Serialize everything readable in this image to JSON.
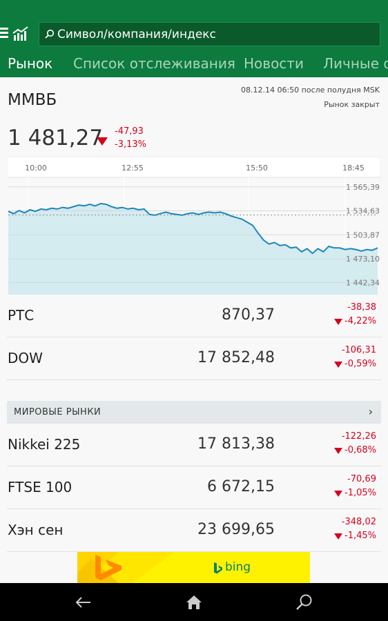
{
  "header": {
    "search_placeholder": "Символ/компания/индекс",
    "tabs": [
      "Рынок",
      "Список отслеживания",
      "Новости",
      "Личные ф"
    ]
  },
  "index": {
    "name": "ММВБ",
    "date": "08.12.14 06:50 после полудня MSK",
    "status": "Рынок закрыт",
    "value": "1 481,27",
    "change_abs": "-47,93",
    "change_pct": "-3,13%"
  },
  "chart_data": {
    "type": "area",
    "x_ticks": [
      "10:00",
      "12:55",
      "15:50",
      "18:45"
    ],
    "y_ticks": [
      "1 565,39",
      "1 534,63",
      "1 503,87",
      "1 473,10",
      "1 442,34"
    ],
    "ylim": [
      1427,
      1575
    ],
    "previous_close": 1529.2,
    "values": [
      1534,
      1531,
      1535,
      1532,
      1536,
      1534,
      1537,
      1536,
      1538,
      1537,
      1539,
      1538,
      1540,
      1542,
      1541,
      1543,
      1541,
      1544,
      1543,
      1540,
      1538,
      1539,
      1537,
      1538,
      1536,
      1537,
      1530,
      1529,
      1531,
      1533,
      1531,
      1530,
      1529,
      1531,
      1532,
      1530,
      1532,
      1533,
      1532,
      1533,
      1531,
      1528,
      1526,
      1524,
      1520,
      1516,
      1506,
      1497,
      1492,
      1494,
      1490,
      1491,
      1487,
      1488,
      1482,
      1486,
      1480,
      1486,
      1482,
      1489,
      1487,
      1487,
      1485,
      1486,
      1485,
      1483,
      1485,
      1484,
      1487
    ],
    "grid": true,
    "colors": {
      "line": "#1b86b8",
      "fill": "#d4ebf0",
      "prev_close": "#888888"
    }
  },
  "quotes_top": [
    {
      "name": "РТС",
      "value": "870,37",
      "change_abs": "-38,38",
      "change_pct": "-4,22%"
    },
    {
      "name": "DOW",
      "value": "17 852,48",
      "change_abs": "-106,31",
      "change_pct": "-0,59%"
    }
  ],
  "world_markets": {
    "title": "МИРОВЫЕ РЫНКИ",
    "chevron": "›",
    "items": [
      {
        "name": "Nikkei 225",
        "value": "17 813,38",
        "change_abs": "-122,26",
        "change_pct": "-0,68%"
      },
      {
        "name": "FTSE 100",
        "value": "6 672,15",
        "change_abs": "-70,69",
        "change_pct": "-1,05%"
      },
      {
        "name": "Хэн сен",
        "value": "23 699,65",
        "change_abs": "-348,02",
        "change_pct": "-1,45%"
      }
    ]
  },
  "ad": {
    "brand": "bing"
  },
  "colors": {
    "accent": "#0d7a3e",
    "negative": "#d6001c",
    "ad_bg": "#fff200",
    "ad_logo": "#008373"
  },
  "icons": [
    "hamburger-icon",
    "chart-icon",
    "search-icon",
    "back-icon",
    "home-icon",
    "search-icon"
  ]
}
